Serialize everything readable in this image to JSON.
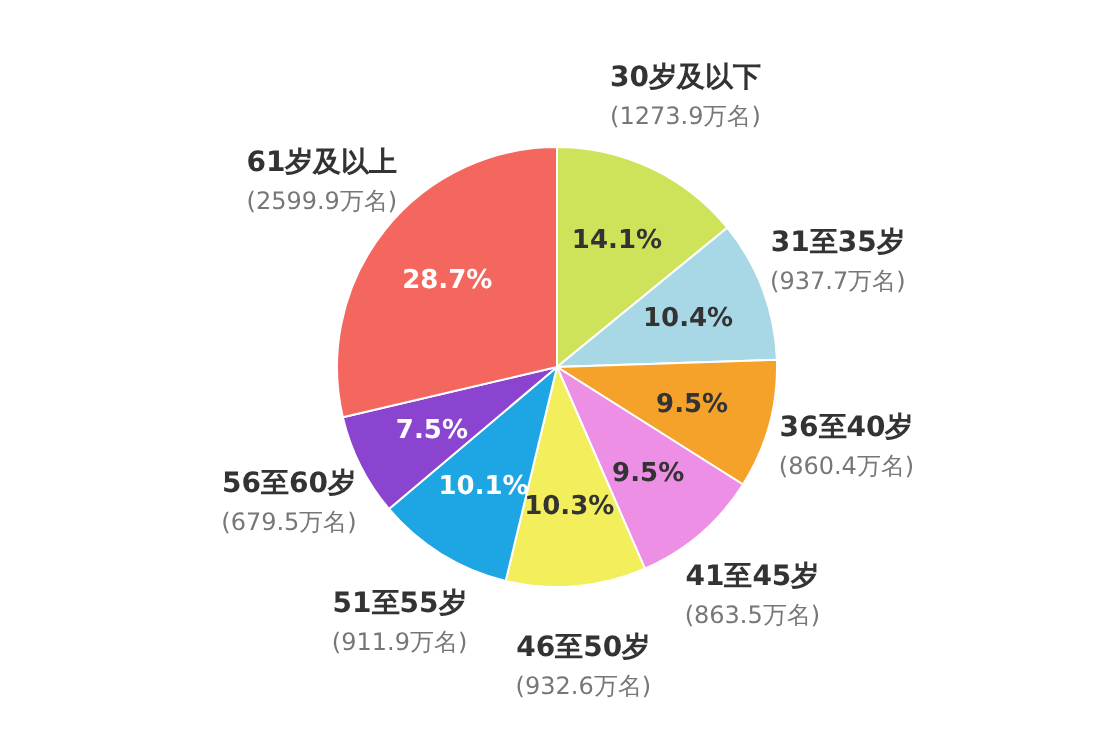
{
  "chart_data": {
    "type": "pie",
    "categories": [
      "30岁及以下",
      "31至35岁",
      "36至40岁",
      "41至45岁",
      "46至50岁",
      "51至55岁",
      "56至60岁",
      "61岁及以上"
    ],
    "values": [
      14.1,
      10.4,
      9.5,
      9.5,
      10.3,
      10.1,
      7.5,
      28.7
    ],
    "value_labels": [
      "14.1%",
      "10.4%",
      "9.5%",
      "9.5%",
      "10.3%",
      "10.1%",
      "7.5%",
      "28.7%"
    ],
    "colors": [
      "#cfe35a",
      "#a8d8e6",
      "#f5a22a",
      "#ee8fe6",
      "#f2ee5c",
      "#1ea6e4",
      "#8b44cf",
      "#f4675e"
    ],
    "annotations": [
      "(1273.9万名)",
      "(937.7万名)",
      "(860.4万名)",
      "(863.5万名)",
      "(932.6万名)",
      "(911.9万名)",
      "(679.5万名)",
      "(2599.9万名)"
    ]
  }
}
